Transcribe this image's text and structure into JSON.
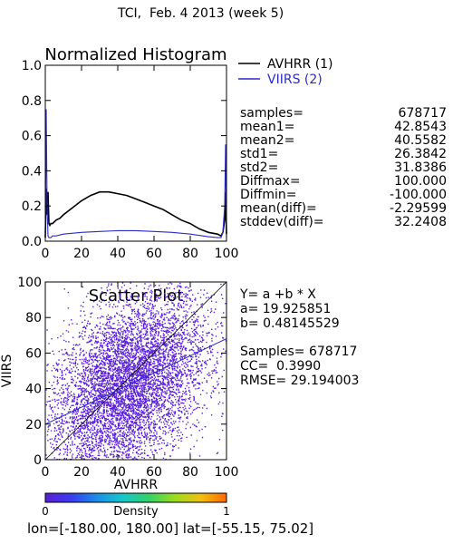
{
  "page_title": "TCI,  Feb. 4 2013 (week 5)",
  "chart_data": [
    {
      "type": "line",
      "title": "Normalized Histogram",
      "xlim": [
        0,
        100
      ],
      "ylim": [
        0,
        1.0
      ],
      "x_ticks": [
        "0",
        "20",
        "40",
        "60",
        "80",
        "100"
      ],
      "y_ticks": [
        "0.0",
        "0.2",
        "0.4",
        "0.6",
        "0.8",
        "1.0"
      ],
      "series": [
        {
          "name": "AVHRR (1)",
          "color": "#000000",
          "x": [
            0,
            0.5,
            1,
            1.5,
            2,
            2.5,
            3,
            4,
            6,
            8,
            10,
            15,
            20,
            25,
            30,
            35,
            40,
            45,
            50,
            55,
            60,
            65,
            70,
            75,
            80,
            85,
            90,
            95,
            97,
            98,
            99,
            99.5,
            100
          ],
          "y": [
            0.02,
            0.3,
            0.15,
            0.28,
            0.1,
            0.09,
            0.1,
            0.1,
            0.12,
            0.13,
            0.15,
            0.19,
            0.23,
            0.26,
            0.28,
            0.28,
            0.27,
            0.26,
            0.24,
            0.22,
            0.2,
            0.18,
            0.15,
            0.12,
            0.1,
            0.07,
            0.05,
            0.04,
            0.03,
            0.05,
            0.12,
            0.28,
            0.04
          ]
        },
        {
          "name": "VIIRS (2)",
          "color": "#2b2bc8",
          "x": [
            0,
            0.5,
            1,
            1.5,
            2,
            3,
            4,
            6,
            10,
            20,
            30,
            40,
            50,
            60,
            70,
            80,
            90,
            95,
            97,
            98,
            99,
            99.5,
            100
          ],
          "y": [
            0.02,
            0.75,
            0.2,
            0.03,
            0.02,
            0.02,
            0.03,
            0.03,
            0.04,
            0.05,
            0.055,
            0.06,
            0.06,
            0.055,
            0.05,
            0.04,
            0.025,
            0.02,
            0.02,
            0.05,
            0.2,
            0.55,
            0.02
          ]
        }
      ]
    },
    {
      "type": "scatter",
      "title": "Scatter Plot",
      "xlabel": "AVHRR",
      "ylabel": "VIIRS",
      "xlim": [
        0,
        100
      ],
      "ylim": [
        0,
        100
      ],
      "x_ticks": [
        "0",
        "20",
        "40",
        "60",
        "80",
        "100"
      ],
      "y_ticks": [
        "0",
        "20",
        "40",
        "60",
        "80",
        "100"
      ],
      "point_color": "#5a1fd8",
      "regression": {
        "intercept": 19.925851,
        "slope": 0.48145529,
        "color": "#2b2bc8"
      },
      "identity_line_color": "#000000"
    }
  ],
  "stats": [
    {
      "key": "samples=",
      "value": "678717"
    },
    {
      "key": "mean1=",
      "value": "42.8543"
    },
    {
      "key": "mean2=",
      "value": "40.5582"
    },
    {
      "key": "std1=",
      "value": "26.3842"
    },
    {
      "key": "std2=",
      "value": "31.8386"
    },
    {
      "key": "Diffmax=",
      "value": "100.000"
    },
    {
      "key": "Diffmin=",
      "value": "-100.000"
    },
    {
      "key": "mean(diff)=",
      "value": "-2.29599"
    },
    {
      "key": "stddev(diff)=",
      "value": "32.2408"
    }
  ],
  "regression_text": {
    "equation": "Y= a +b * X",
    "a": "a= 19.925851",
    "b": "b= 0.48145529",
    "samples": "Samples= 678717",
    "cc": "CC=  0.3990",
    "rmse": "RMSE= 29.194003"
  },
  "colorbar": {
    "label": "Density",
    "min_label": "0",
    "max_label": "1",
    "colors": [
      "#5a1fd8",
      "#3b3bf0",
      "#1a8fe8",
      "#14c8c8",
      "#33d16a",
      "#9bdc1e",
      "#f0c010",
      "#ff6a00"
    ]
  },
  "footer": "lon=[-180.00, 180.00] lat=[-55.15, 75.02]"
}
